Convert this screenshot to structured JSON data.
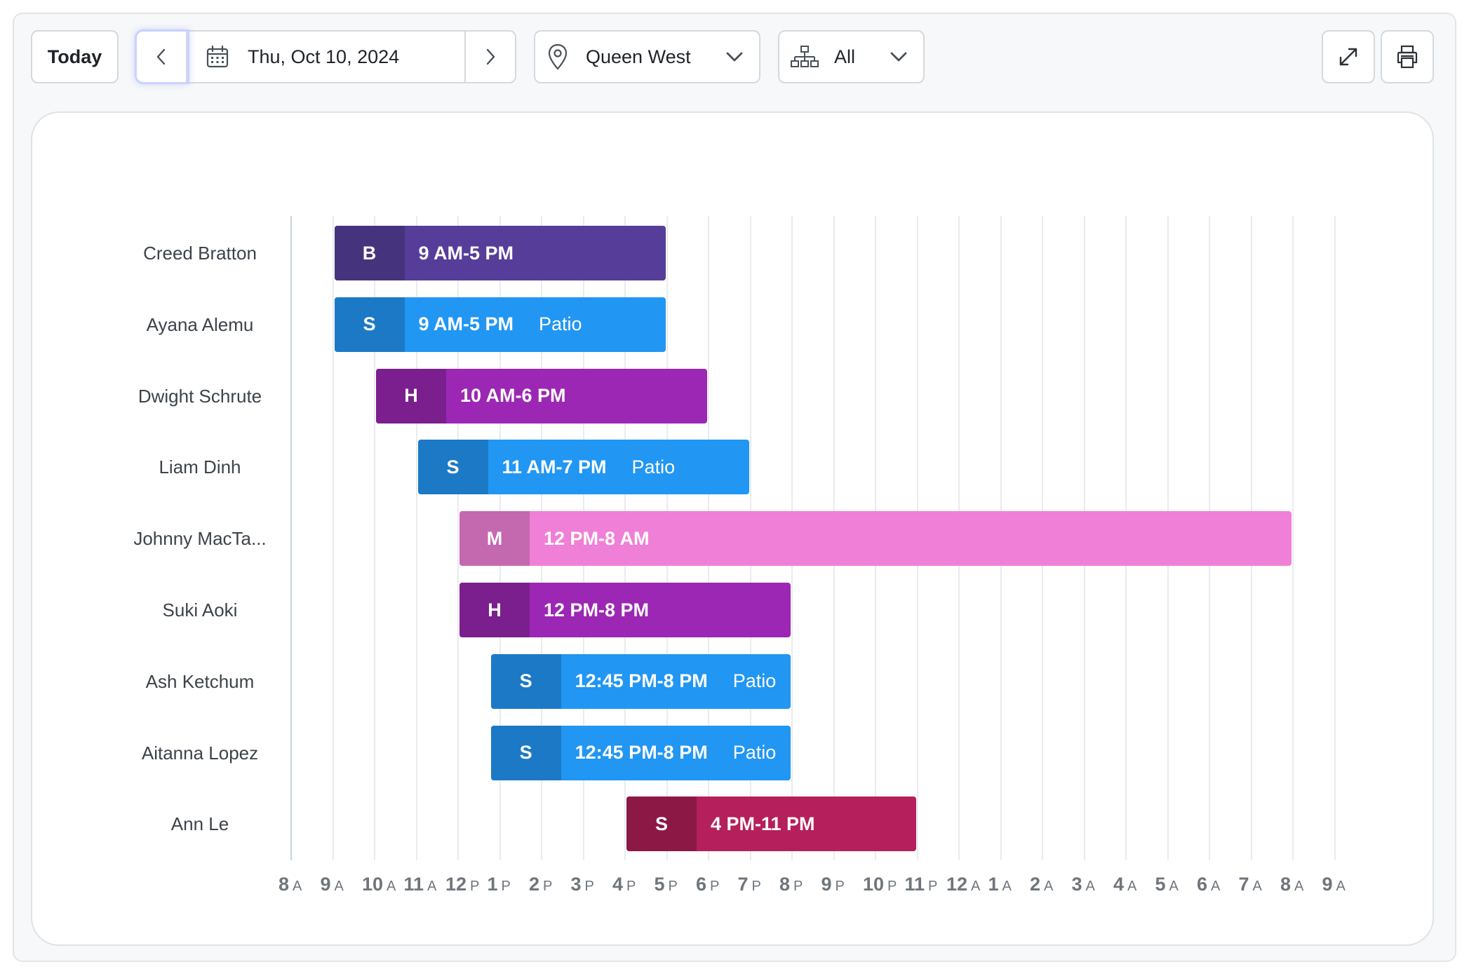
{
  "toolbar": {
    "today_label": "Today",
    "date_label": "Thu, Oct 10, 2024",
    "location_label": "Queen West",
    "group_label": "All"
  },
  "colors": {
    "B": {
      "main": "#563d99",
      "role": "#46337d"
    },
    "S": {
      "main": "#2196f3",
      "role": "#1c79c6"
    },
    "H": {
      "main": "#9c27b4",
      "role": "#7a1f8d"
    },
    "M": {
      "main": "#f07fd7",
      "role": "#c468b0"
    },
    "S2": {
      "main": "#b51f5b",
      "role": "#8c1846"
    }
  },
  "timeline": {
    "start_hour": 8,
    "ticks": [
      {
        "num": "8",
        "suf": "A"
      },
      {
        "num": "9",
        "suf": "A"
      },
      {
        "num": "10",
        "suf": "A"
      },
      {
        "num": "11",
        "suf": "A"
      },
      {
        "num": "12",
        "suf": "P"
      },
      {
        "num": "1",
        "suf": "P"
      },
      {
        "num": "2",
        "suf": "P"
      },
      {
        "num": "3",
        "suf": "P"
      },
      {
        "num": "4",
        "suf": "P"
      },
      {
        "num": "5",
        "suf": "P"
      },
      {
        "num": "6",
        "suf": "P"
      },
      {
        "num": "7",
        "suf": "P"
      },
      {
        "num": "8",
        "suf": "P"
      },
      {
        "num": "9",
        "suf": "P"
      },
      {
        "num": "10",
        "suf": "P"
      },
      {
        "num": "11",
        "suf": "P"
      },
      {
        "num": "12",
        "suf": "A"
      },
      {
        "num": "1",
        "suf": "A"
      },
      {
        "num": "2",
        "suf": "A"
      },
      {
        "num": "3",
        "suf": "A"
      },
      {
        "num": "4",
        "suf": "A"
      },
      {
        "num": "5",
        "suf": "A"
      },
      {
        "num": "6",
        "suf": "A"
      },
      {
        "num": "7",
        "suf": "A"
      },
      {
        "num": "8",
        "suf": "A"
      },
      {
        "num": "9",
        "suf": "A"
      }
    ]
  },
  "shifts": [
    {
      "name": "Creed Bratton",
      "role": "B",
      "color": "B",
      "label": "9 AM-5 PM",
      "area": "",
      "start": 9,
      "end": 17
    },
    {
      "name": "Ayana Alemu",
      "role": "S",
      "color": "S",
      "label": "9 AM-5 PM",
      "area": "Patio",
      "start": 9,
      "end": 17
    },
    {
      "name": "Dwight Schrute",
      "role": "H",
      "color": "H",
      "label": "10 AM-6 PM",
      "area": "",
      "start": 10,
      "end": 18
    },
    {
      "name": "Liam Dinh",
      "role": "S",
      "color": "S",
      "label": "11 AM-7 PM",
      "area": "Patio",
      "start": 11,
      "end": 19
    },
    {
      "name": "Johnny MacTa...",
      "role": "M",
      "color": "M",
      "label": "12 PM-8 AM",
      "area": "",
      "start": 12,
      "end": 32
    },
    {
      "name": "Suki Aoki",
      "role": "H",
      "color": "H",
      "label": "12 PM-8 PM",
      "area": "",
      "start": 12,
      "end": 20
    },
    {
      "name": "Ash Ketchum",
      "role": "S",
      "color": "S",
      "label": "12:45 PM-8 PM",
      "area": "Patio",
      "start": 12.75,
      "end": 20
    },
    {
      "name": "Aitanna Lopez",
      "role": "S",
      "color": "S",
      "label": "12:45 PM-8 PM",
      "area": "Patio",
      "start": 12.75,
      "end": 20
    },
    {
      "name": "Ann Le",
      "role": "S",
      "color": "S2",
      "label": "4 PM-11 PM",
      "area": "",
      "start": 16,
      "end": 23
    }
  ]
}
